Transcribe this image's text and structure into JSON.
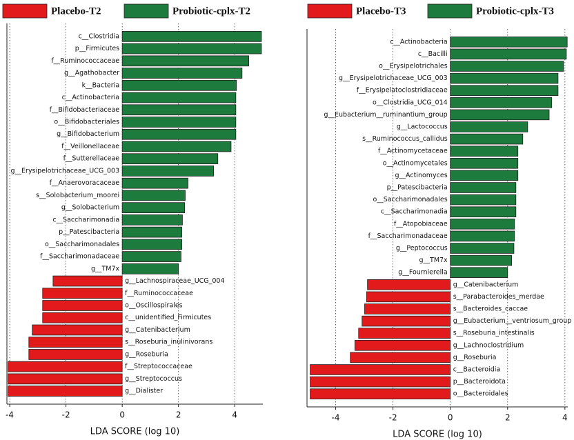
{
  "chart_data": [
    {
      "type": "hbar",
      "xlabel": "LDA SCORE (log 10)",
      "xlim": [
        -4.1,
        5.0
      ],
      "xticks": [
        -4,
        -2,
        0,
        2,
        4
      ],
      "grid": true,
      "categories": [
        "c__Clostridia",
        "p__Firmicutes",
        "f__Ruminococcaceae",
        "g__Agathobacter",
        "k__Bacteria",
        "c__Actinobacteria",
        "f__Bifidobacteriaceae",
        "o__Bifidobacteriales",
        "g__Bifidobacterium",
        "f__Veillonellaceae",
        "f__Sutterellaceae",
        "g__Erysipelotrichaceae_UCG_003",
        "f__Anaerovoracaceae",
        "s__Solobacterium_moorei",
        "g__Solobacterium",
        "c__Saccharimonadia",
        "p__Patescibacteria",
        "o__Saccharimonadales",
        "f__Saccharimonadaceae",
        "g__TM7x",
        "g__Lachnospiraceae_UCG_004",
        "f__Ruminococcaceae",
        "o__Oscillospirales",
        "c__unidentified_Firmicutes",
        "g__Catenibacterium",
        "s__Roseburia_inulinivorans",
        "g__Roseburia",
        "f__Streptococcaceae",
        "g__Streptococcus",
        "g__Dialister"
      ],
      "series": [
        {
          "name": "Placebo-T2",
          "color": "#e31a1c",
          "values": [
            null,
            null,
            null,
            null,
            null,
            null,
            null,
            null,
            null,
            null,
            null,
            null,
            null,
            null,
            null,
            null,
            null,
            null,
            null,
            null,
            -2.46,
            -2.83,
            -2.83,
            -2.83,
            -3.2,
            -3.32,
            -3.32,
            -4.06,
            -4.06,
            -4.06
          ]
        },
        {
          "name": "Probiotic-cplx-T2",
          "color": "#1e7b3e",
          "values": [
            4.95,
            4.95,
            4.5,
            4.26,
            4.06,
            4.04,
            4.04,
            4.04,
            4.04,
            3.87,
            3.4,
            3.25,
            2.34,
            2.24,
            2.22,
            2.14,
            2.12,
            2.12,
            2.09,
            2.0,
            null,
            null,
            null,
            null,
            null,
            null,
            null,
            null,
            null,
            null
          ]
        }
      ]
    },
    {
      "type": "hbar",
      "xlabel": "LDA SCORE (log 10)",
      "xlim": [
        -5.0,
        4.1
      ],
      "xticks": [
        -4,
        -2,
        0,
        2,
        4
      ],
      "grid": true,
      "categories": [
        "c__Actinobacteria",
        "c__Bacilli",
        "o__Erysipelotrichales",
        "g__Erysipelotrichaceae_UCG_003",
        "f__Erysipelatoclostridiaceae",
        "o__Clostridia_UCG_014",
        "g__Eubacterium__ruminantium_group",
        "g__Lactococcus",
        "s__Ruminococcus_callidus",
        "f__Actinomycetaceae",
        "o__Actinomycetales",
        "g__Actinomyces",
        "p__Patescibacteria",
        "o__Saccharimonadales",
        "c__Saccharimonadia",
        "f__Atopobiaceae",
        "f__Saccharimonadaceae",
        "g__Peptococcus",
        "g__TM7x",
        "g__Fournierella",
        "g__Catenibacterium",
        "s__Parabacteroides_merdae",
        "s__Bacteroides_caccae",
        "g__Eubacterium__ventriosum_group",
        "s__Roseburia_intestinalis",
        "g__Lachnoclostridium",
        "g__Roseburia",
        "c__Bacteroidia",
        "p__Bacteroidota",
        "o__Bacteroidales"
      ],
      "series": [
        {
          "name": "Placebo-T3",
          "color": "#e31a1c",
          "values": [
            null,
            null,
            null,
            null,
            null,
            null,
            null,
            null,
            null,
            null,
            null,
            null,
            null,
            null,
            null,
            null,
            null,
            null,
            null,
            null,
            -2.89,
            -2.92,
            -2.99,
            -3.08,
            -3.2,
            -3.33,
            -3.49,
            -4.89,
            -4.89,
            -4.89
          ]
        },
        {
          "name": "Probiotic-cplx-T3",
          "color": "#1e7b3e",
          "values": [
            4.08,
            4.05,
            3.95,
            3.76,
            3.76,
            3.54,
            3.45,
            2.7,
            2.53,
            2.36,
            2.36,
            2.36,
            2.29,
            2.29,
            2.29,
            2.24,
            2.24,
            2.22,
            2.14,
            2.0,
            null,
            null,
            null,
            null,
            null,
            null,
            null,
            null,
            null,
            null
          ]
        }
      ]
    }
  ]
}
